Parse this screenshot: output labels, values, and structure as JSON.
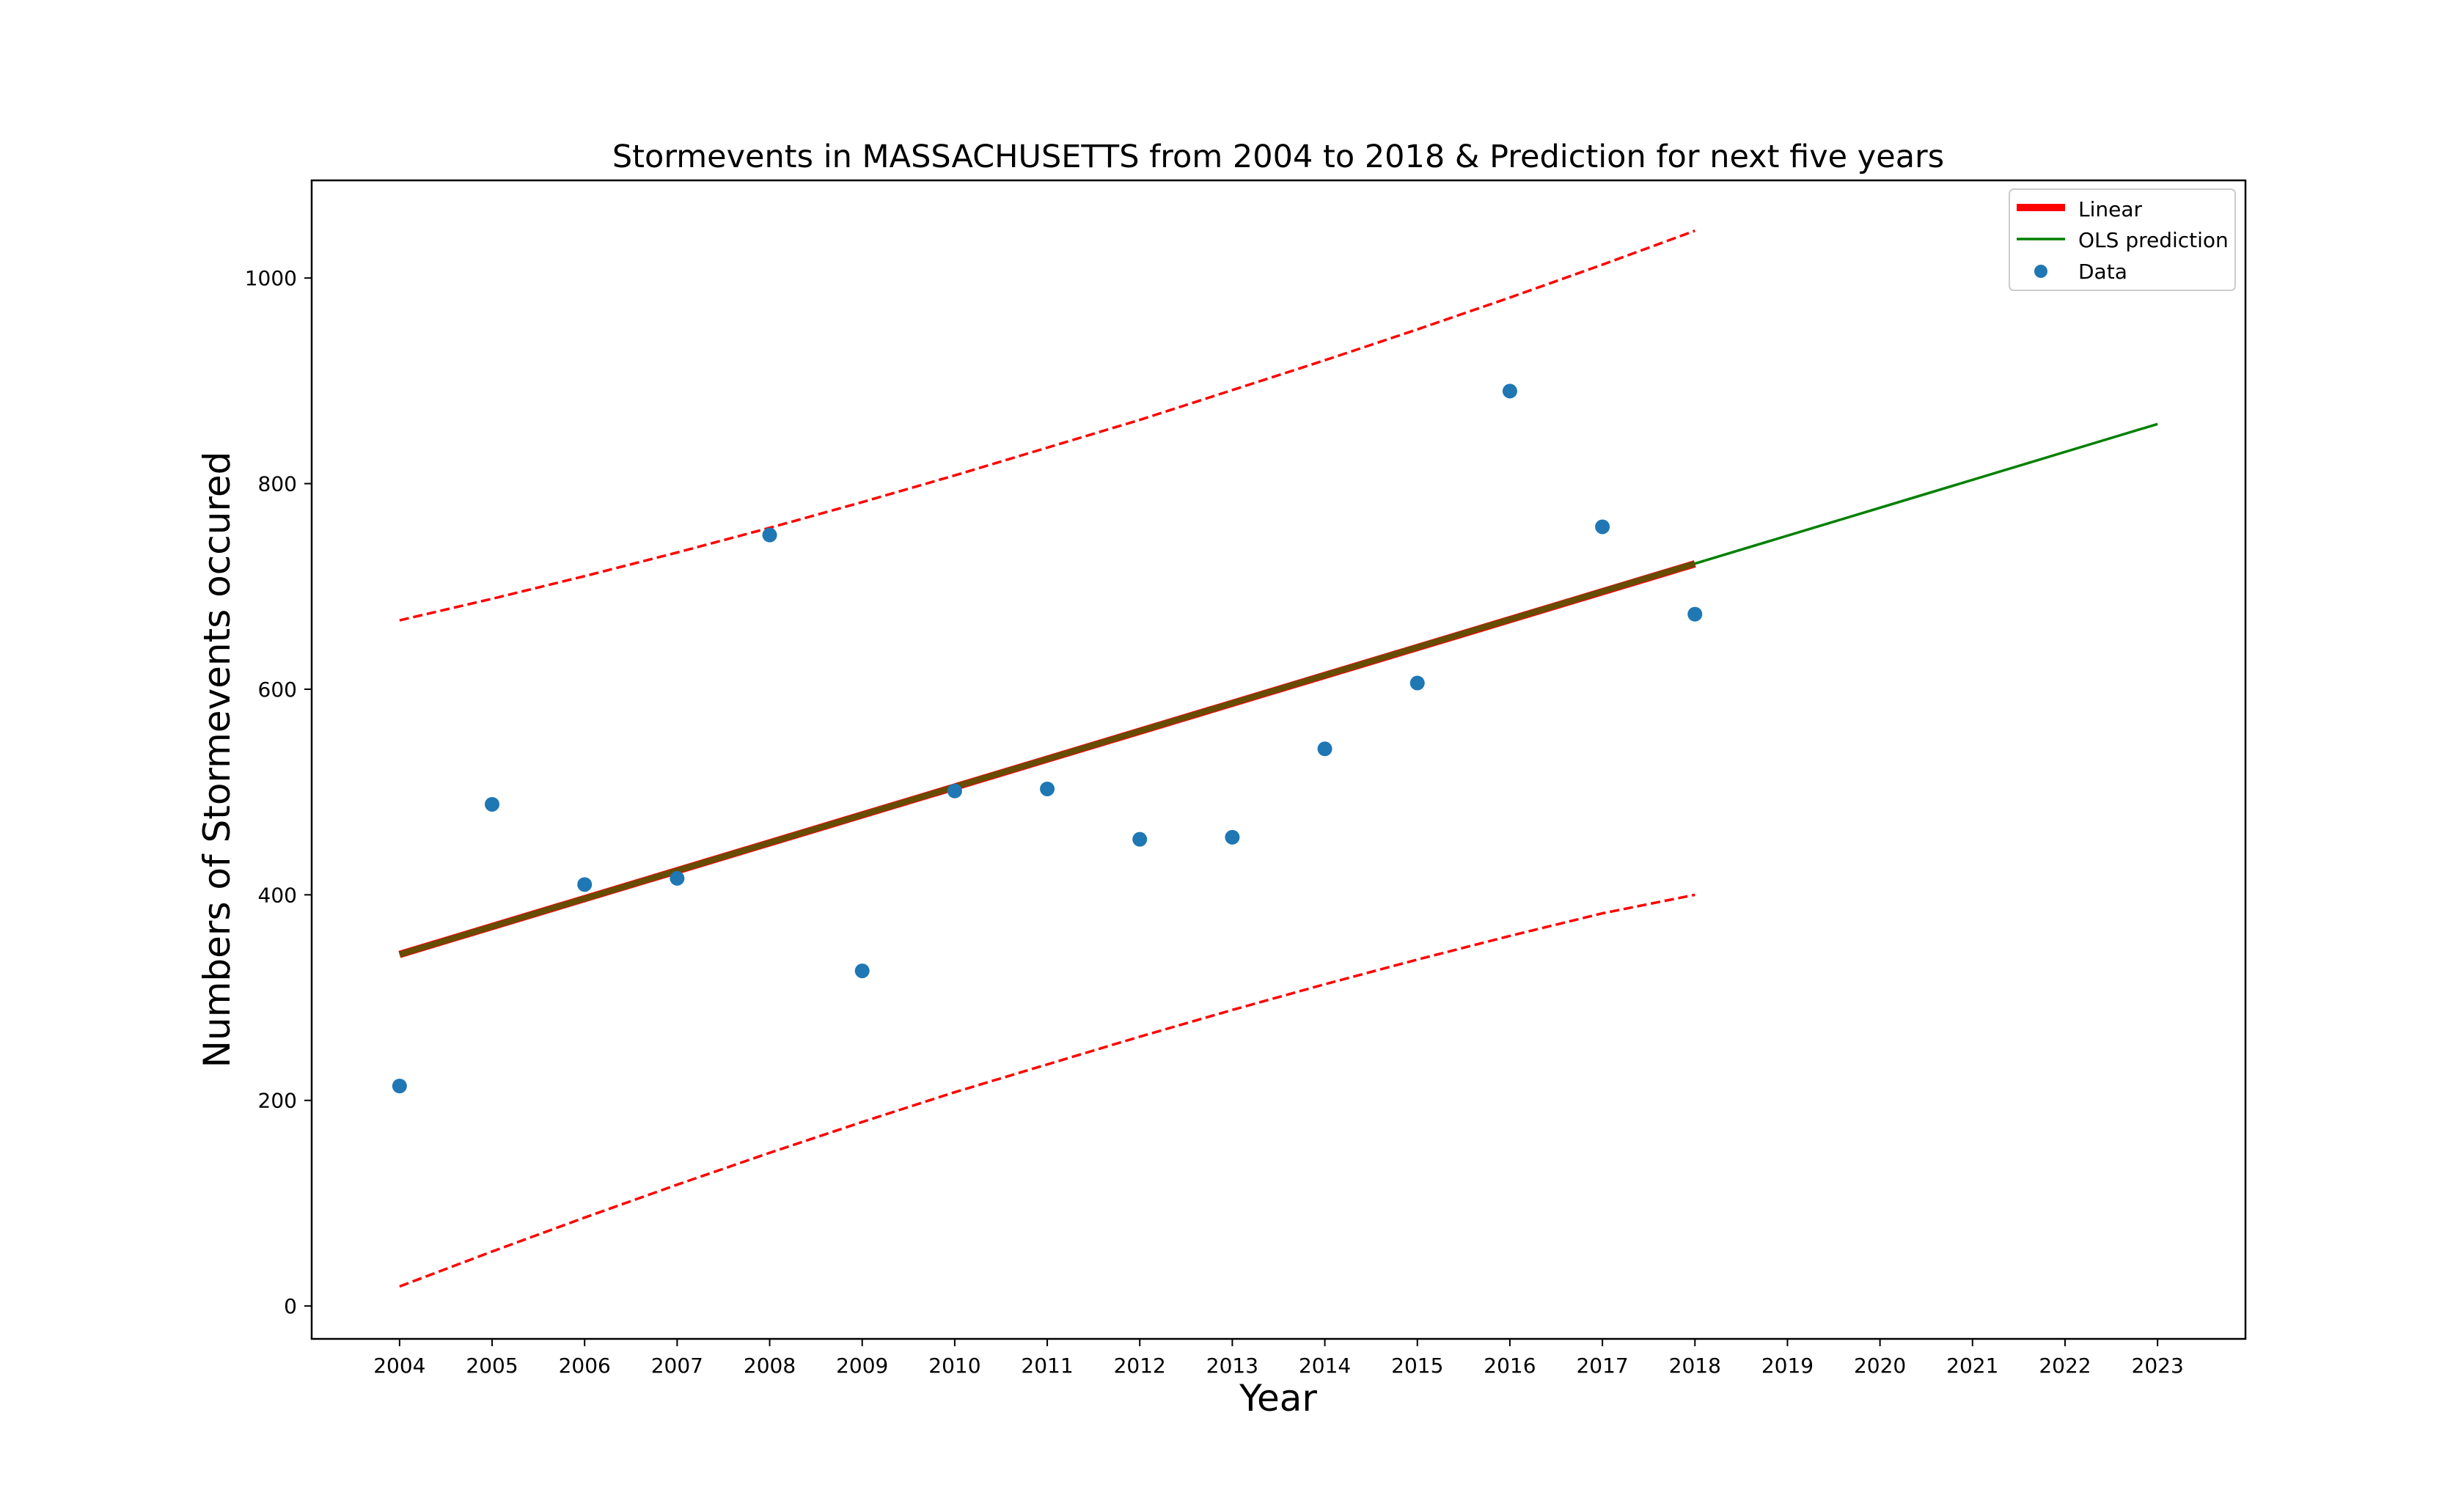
{
  "chart_data": {
    "type": "scatter",
    "title": "Stormevents in MASSACHUSETTS from 2004 to 2018 & Prediction for next five years",
    "xlabel": "Year",
    "ylabel": "Numbers of Stormevents occured",
    "xlim": [
      2003.05,
      2023.95
    ],
    "ylim": [
      -32,
      1095
    ],
    "x_ticks": [
      "2004",
      "2005",
      "2006",
      "2007",
      "2008",
      "2009",
      "2010",
      "2011",
      "2012",
      "2013",
      "2014",
      "2015",
      "2016",
      "2017",
      "2018",
      "2019",
      "2020",
      "2021",
      "2022",
      "2023"
    ],
    "y_ticks": [
      0,
      200,
      400,
      600,
      800,
      1000
    ],
    "legend_position": "top-right",
    "grid": false,
    "series": [
      {
        "name": "Data",
        "kind": "scatter",
        "color": "#1f77b4",
        "x": [
          2004,
          2005,
          2006,
          2007,
          2008,
          2009,
          2010,
          2011,
          2012,
          2013,
          2014,
          2015,
          2016,
          2017,
          2018
        ],
        "y": [
          214,
          488,
          410,
          416,
          750,
          326,
          501,
          503,
          454,
          456,
          542,
          606,
          890,
          758,
          673
        ]
      },
      {
        "name": "Linear",
        "kind": "line",
        "color": "#ff0000",
        "x": [
          2004,
          2018
        ],
        "y": [
          342,
          722
        ]
      },
      {
        "name": "OLS prediction",
        "kind": "line",
        "color": "#008000",
        "x": [
          2004,
          2023
        ],
        "y": [
          342,
          858
        ]
      },
      {
        "kind": "dashed",
        "color": "#ff0000",
        "x": [
          2004,
          2005,
          2006,
          2007,
          2008,
          2009,
          2010,
          2011,
          2012,
          2013,
          2014,
          2015,
          2016,
          2017,
          2018
        ],
        "y": [
          667,
          688,
          710,
          733,
          757,
          782,
          808,
          835,
          862,
          891,
          920,
          950,
          981,
          1013,
          1046
        ]
      },
      {
        "kind": "dashed",
        "color": "#ff0000",
        "x": [
          2004,
          2005,
          2006,
          2007,
          2008,
          2009,
          2010,
          2011,
          2012,
          2013,
          2014,
          2015,
          2016,
          2017,
          2018
        ],
        "y": [
          19,
          53,
          86,
          118,
          149,
          179,
          208,
          235,
          262,
          288,
          313,
          337,
          360,
          382,
          400
        ]
      }
    ]
  }
}
